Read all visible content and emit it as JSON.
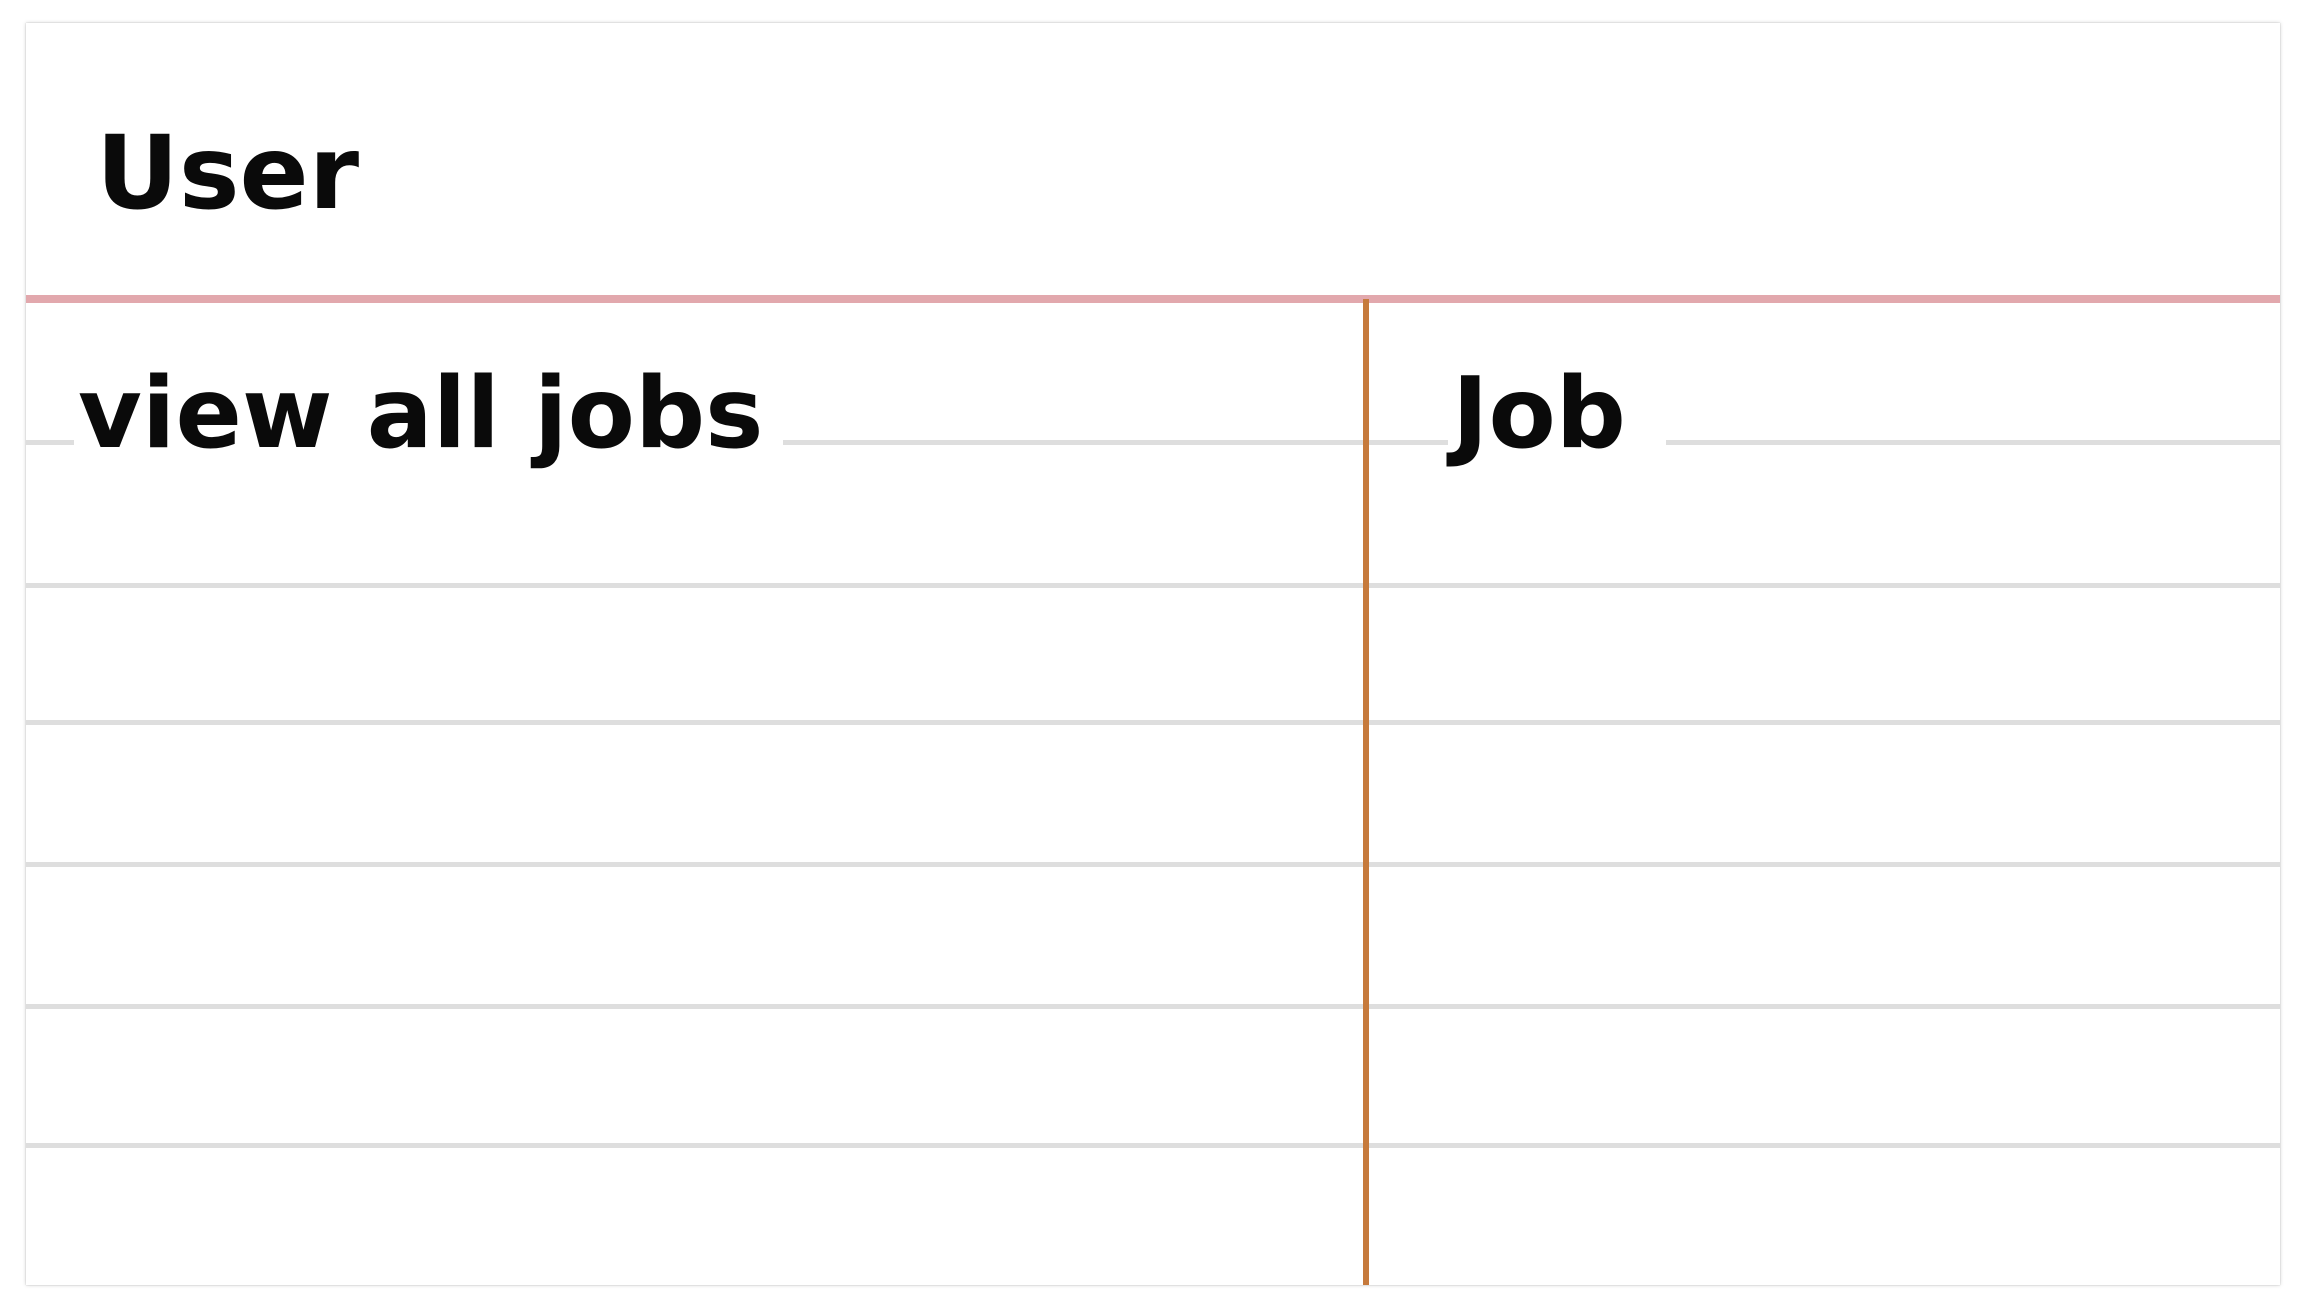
{
  "card": {
    "title": "User",
    "left_column": {
      "label": "view all jobs"
    },
    "right_column": {
      "label": "Job"
    }
  },
  "colors": {
    "header_rule": "#e2a8ad",
    "column_divider": "#c67a3c",
    "ruled_line": "#dedede",
    "text": "#0a0a0a"
  }
}
